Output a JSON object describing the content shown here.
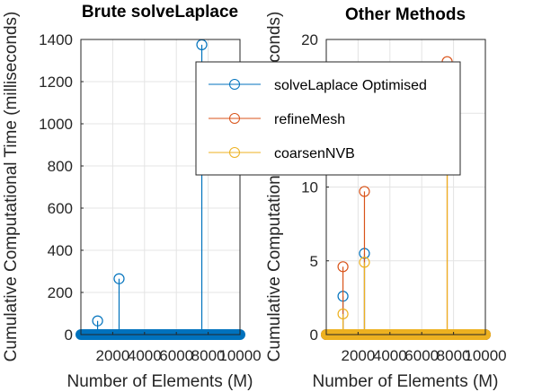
{
  "chart_data": [
    {
      "type": "stem",
      "title": "Brute solveLaplace",
      "xlabel": "Number of Elements (M)",
      "ylabel": "Cumulative Computational Time (milliseconds)",
      "xlim": [
        0,
        10000
      ],
      "ylim": [
        0,
        1400
      ],
      "xticks": [
        2000,
        4000,
        6000,
        8000,
        10000
      ],
      "xtick_labels": [
        "2000",
        "4000",
        "6000",
        "8000",
        "10000"
      ],
      "yticks": [
        0,
        200,
        400,
        600,
        800,
        1000,
        1200,
        1400
      ],
      "ytick_labels": [
        "0",
        "200",
        "400",
        "600",
        "800",
        "1000",
        "1200",
        "1400"
      ],
      "grid": true,
      "series": [
        {
          "color": "#0072BD",
          "points": [
            [
              1050,
              65
            ],
            [
              2400,
              265
            ],
            [
              7600,
              1375
            ]
          ],
          "zero_range": [
            0,
            10000
          ]
        }
      ]
    },
    {
      "type": "stem",
      "title": "Other Methods",
      "xlabel": "Number of Elements (M)",
      "ylabel": "Cumulative Computational Time (milliseconds)",
      "xlim": [
        0,
        10000
      ],
      "ylim": [
        0,
        20
      ],
      "xticks": [
        2000,
        4000,
        6000,
        8000,
        10000
      ],
      "xtick_labels": [
        "2000",
        "4000",
        "6000",
        "8000",
        "10000"
      ],
      "yticks": [
        0,
        5,
        10,
        15,
        20
      ],
      "ytick_labels": [
        "0",
        "5",
        "10",
        "15",
        "20"
      ],
      "grid": true,
      "legend_position": "top-right",
      "series": [
        {
          "name": "solveLaplace Optimised",
          "color": "#0072BD",
          "points": [
            [
              1050,
              2.6
            ],
            [
              2400,
              5.5
            ]
          ],
          "zero_range": [
            0,
            10000
          ]
        },
        {
          "name": "refineMesh",
          "color": "#D95319",
          "points": [
            [
              1050,
              4.6
            ],
            [
              2400,
              9.7
            ],
            [
              7600,
              18.5
            ]
          ],
          "zero_range": [
            0,
            10000
          ]
        },
        {
          "name": "coarsenNVB",
          "color": "#EDB120",
          "points": [
            [
              1050,
              1.4
            ],
            [
              2400,
              4.9
            ],
            [
              7600,
              12
            ]
          ],
          "zero_range": [
            0,
            10000
          ]
        }
      ]
    }
  ]
}
